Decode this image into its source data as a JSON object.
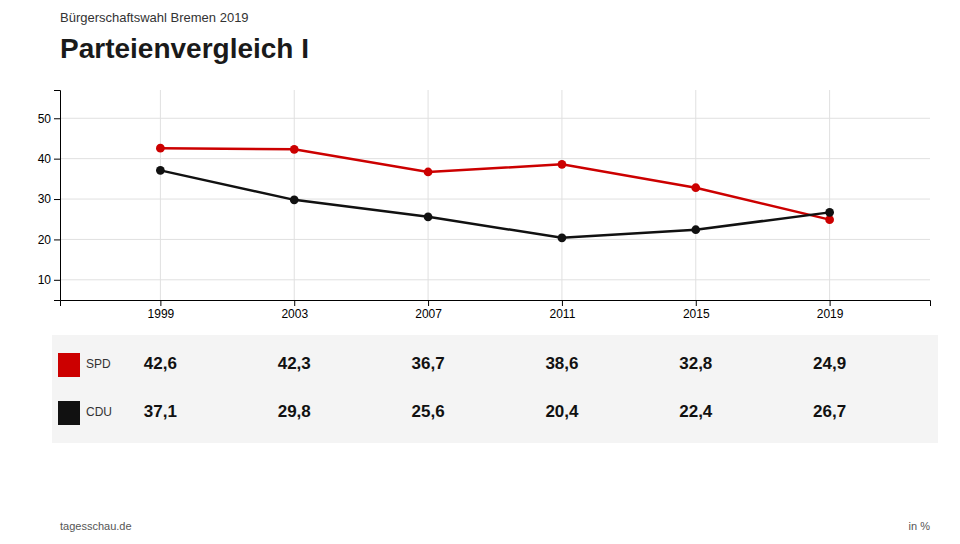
{
  "chart_data": {
    "type": "line",
    "title": "Parteienvergleich I",
    "subtitle": "Bürgerschaftswahl Bremen 2019",
    "source": "tagesschau.de",
    "unit": "in %",
    "x": [
      1999,
      2003,
      2007,
      2011,
      2015,
      2019
    ],
    "xlim": [
      1996,
      2022
    ],
    "xticks": [
      1999,
      2003,
      2007,
      2011,
      2015,
      2019
    ],
    "ylim": [
      5,
      57
    ],
    "yticks": [
      10,
      20,
      30,
      40,
      50
    ],
    "grid": true,
    "legend": "bottom",
    "marker": "circle",
    "series": [
      {
        "name": "SPD",
        "color": "#cc0000",
        "values": [
          42.6,
          42.3,
          36.7,
          38.6,
          32.8,
          24.9
        ],
        "value_labels": [
          "42,6",
          "42,3",
          "36,7",
          "38,6",
          "32,8",
          "24,9"
        ]
      },
      {
        "name": "CDU",
        "color": "#111111",
        "values": [
          37.1,
          29.8,
          25.6,
          20.4,
          22.4,
          26.7
        ],
        "value_labels": [
          "37,1",
          "29,8",
          "25,6",
          "20,4",
          "22,4",
          "26,7"
        ]
      }
    ]
  }
}
